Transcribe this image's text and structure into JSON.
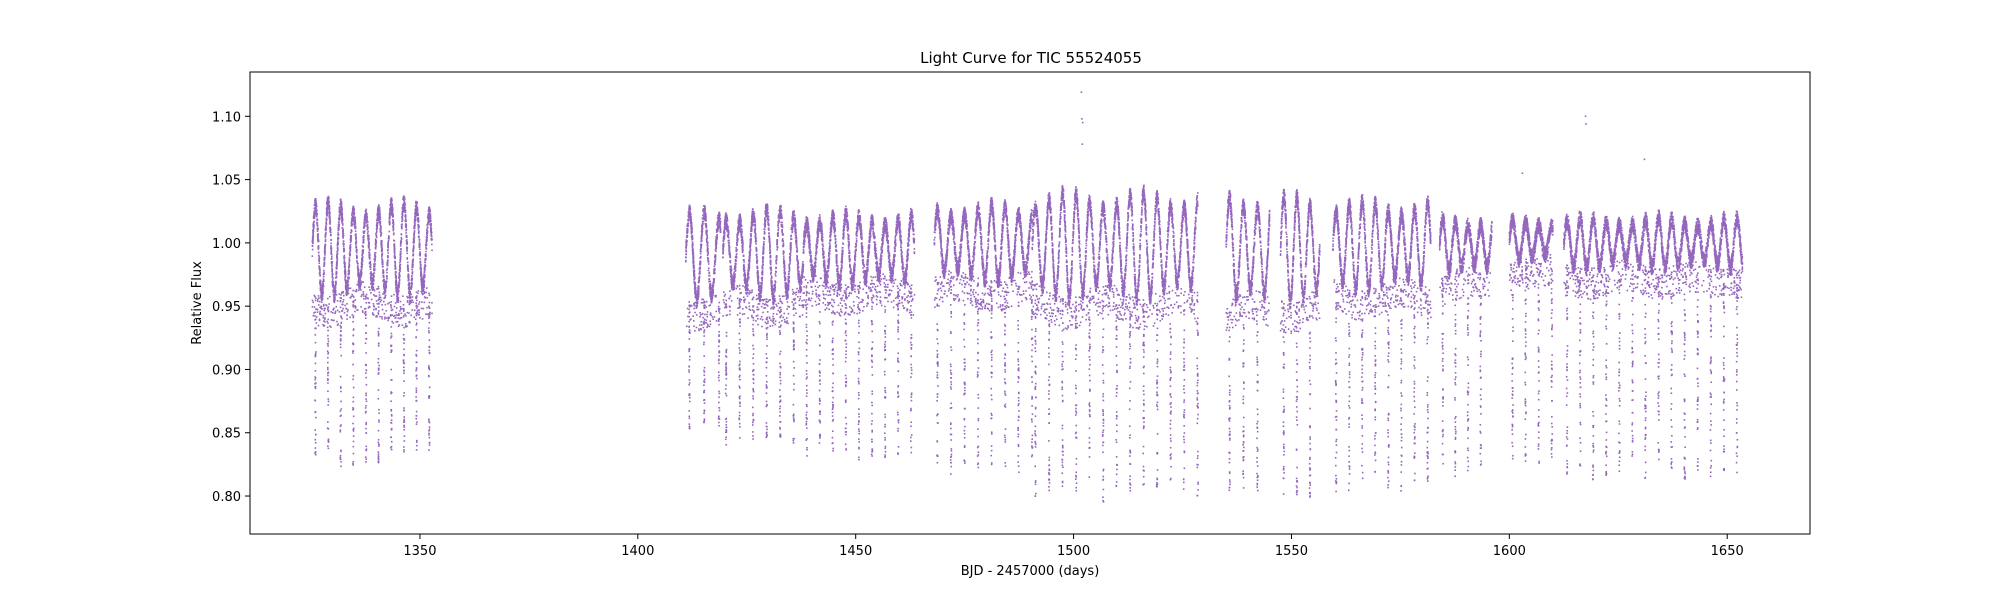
{
  "chart_data": {
    "type": "scatter",
    "title": "Light Curve for TIC 55524055",
    "xlabel": "BJD - 2457000 (days)",
    "ylabel": "Relative Flux",
    "xlim": [
      1311,
      1669
    ],
    "ylim": [
      0.77,
      1.135
    ],
    "grid": false,
    "legend": "none",
    "x_ticks": [
      1350,
      1400,
      1450,
      1500,
      1550,
      1600,
      1650
    ],
    "y_ticks": [
      0.8,
      0.85,
      0.9,
      0.95,
      1.0,
      1.05,
      1.1
    ],
    "x_tick_labels": [
      "1350",
      "1400",
      "1450",
      "1500",
      "1550",
      "1600",
      "1650"
    ],
    "y_tick_labels": [
      "0.80",
      "0.85",
      "0.90",
      "0.95",
      "1.00",
      "1.05",
      "1.10"
    ],
    "series": [
      {
        "color": "#9467bd",
        "segments": [
          {
            "x0": 1325.3,
            "x1": 1352.8,
            "period": 2.9,
            "amp": 0.037,
            "baseline": 0.995,
            "dip_min": 0.823
          },
          {
            "x0": 1411.0,
            "x1": 1419.0,
            "period": 3.4,
            "amp": 0.035,
            "baseline": 0.99,
            "dip_min": 0.845
          },
          {
            "x0": 1419.5,
            "x1": 1438.0,
            "period": 3.1,
            "amp": 0.035,
            "baseline": 0.992,
            "dip_min": 0.832
          },
          {
            "x0": 1438.0,
            "x1": 1463.5,
            "period": 3.0,
            "amp": 0.028,
            "baseline": 0.995,
            "dip_min": 0.825
          },
          {
            "x0": 1468.0,
            "x1": 1490.5,
            "period": 3.1,
            "amp": 0.03,
            "baseline": 1.0,
            "dip_min": 0.815
          },
          {
            "x0": 1490.5,
            "x1": 1528.5,
            "period": 3.1,
            "amp": 0.042,
            "baseline": 0.998,
            "dip_min": 0.795
          },
          {
            "x0": 1535.0,
            "x1": 1545.0,
            "period": 3.2,
            "amp": 0.045,
            "baseline": 0.995,
            "dip_min": 0.795
          },
          {
            "x0": 1547.5,
            "x1": 1556.5,
            "period": 3.0,
            "amp": 0.042,
            "baseline": 0.995,
            "dip_min": 0.787
          },
          {
            "x0": 1559.5,
            "x1": 1582.0,
            "period": 3.0,
            "amp": 0.035,
            "baseline": 0.998,
            "dip_min": 0.802
          },
          {
            "x0": 1584.0,
            "x1": 1596.0,
            "period": 2.9,
            "amp": 0.022,
            "baseline": 0.998,
            "dip_min": 0.813
          },
          {
            "x0": 1600.0,
            "x1": 1610.0,
            "period": 3.0,
            "amp": 0.016,
            "baseline": 1.002,
            "dip_min": 0.815
          },
          {
            "x0": 1612.5,
            "x1": 1653.5,
            "period": 3.0,
            "amp": 0.02,
            "baseline": 1.0,
            "dip_min": 0.812
          }
        ],
        "outliers": [
          {
            "x": 1501.8,
            "y": 1.119
          },
          {
            "x": 1501.9,
            "y": 1.098
          },
          {
            "x": 1502.1,
            "y": 1.095
          },
          {
            "x": 1502.0,
            "y": 1.078
          },
          {
            "x": 1617.5,
            "y": 1.1
          },
          {
            "x": 1617.6,
            "y": 1.094
          },
          {
            "x": 1631.0,
            "y": 1.066
          },
          {
            "x": 1603.0,
            "y": 1.055
          }
        ]
      }
    ]
  }
}
